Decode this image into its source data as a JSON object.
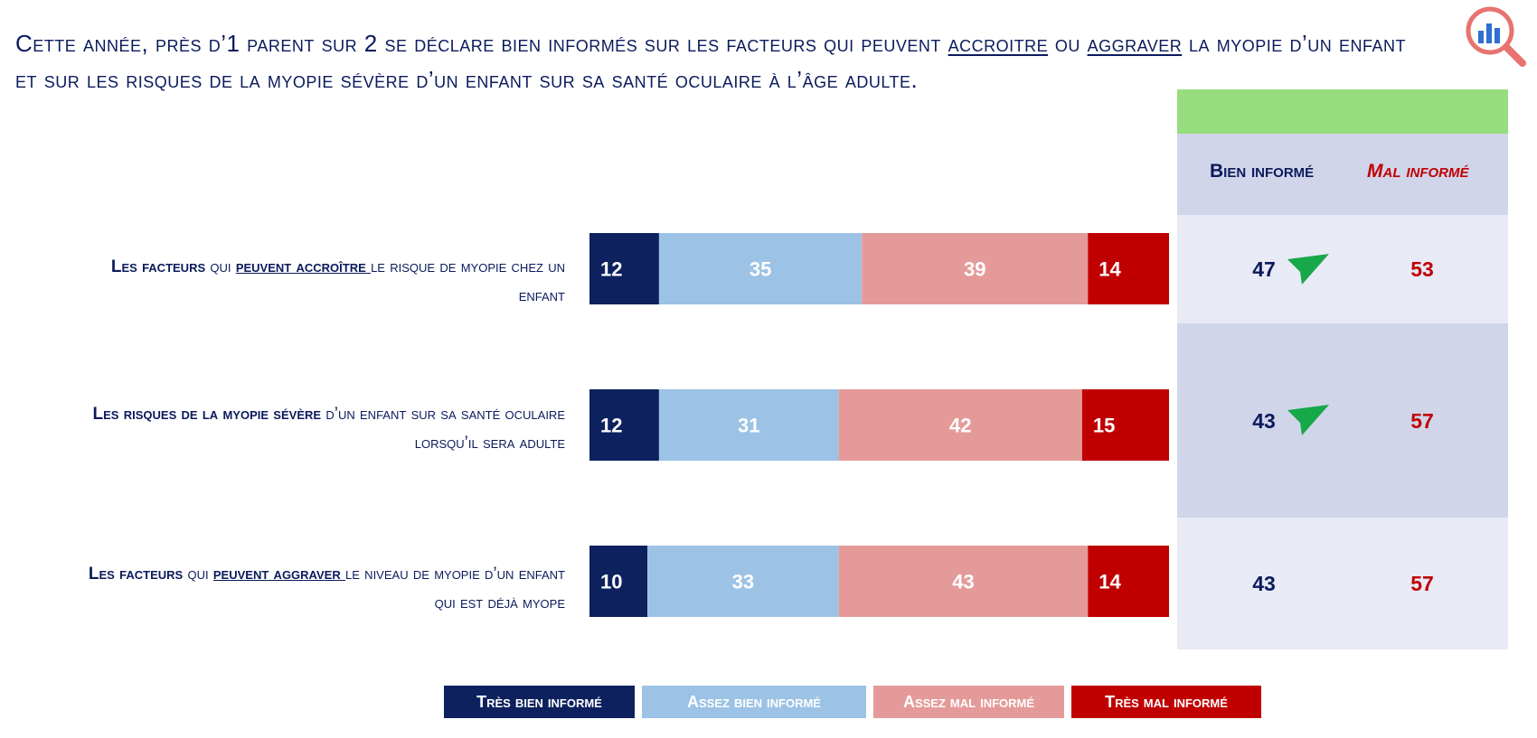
{
  "title": {
    "part1": "Cette année, près d’1 parent sur 2 se déclare bien informés sur les facteurs qui peuvent ",
    "word1": "accroitre",
    "part2": " ou ",
    "word2": "aggraver",
    "part3": " la myopie d’un enfant",
    "line2": "et sur les risques de la myopie sévère d’un enfant sur sa santé oculaire à l’âge adulte."
  },
  "logo": {
    "icon": "magnifier-chart-icon",
    "color": "#e8736e"
  },
  "rows": [
    {
      "bold": "Les facteurs",
      "pre": " qui ",
      "underline": "peuvent accroître ",
      "post": "le risque de myopie chez un",
      "line2": "enfant"
    },
    {
      "bold": "Les risques de la myopie sévère",
      "pre": " d’un enfant sur sa santé oculaire",
      "underline": "",
      "post": "",
      "line2": "lorsqu’il sera adulte"
    },
    {
      "bold": "Les facteurs",
      "pre": " qui ",
      "underline": "peuvent aggraver ",
      "post": "le niveau de myopie d’un enfant",
      "line2": "qui est déjà myope"
    }
  ],
  "summary": {
    "header_good": "Bien informé",
    "header_bad": "Mal informé",
    "good": [
      "47",
      "43",
      "43"
    ],
    "bad": [
      "53",
      "57",
      "57"
    ],
    "trend_icon": "green-up-arrow-icon",
    "trend_rows": [
      true,
      true,
      false
    ]
  },
  "colors": {
    "tres_bien": "#0d215e",
    "assez_bien": "#9cc2e5",
    "assez_mal": "#e59a9a",
    "tres_mal": "#c00000",
    "panel_top": "#96dd7e",
    "panel_header": "#d1d5ea",
    "good_text": "#0a1a5c",
    "bad_text": "#c00000"
  },
  "legend": [
    "Très bien informé",
    "Assez bien informé",
    "Assez mal informé",
    "Très mal informé"
  ],
  "chart_data": {
    "type": "bar",
    "orientation": "horizontal",
    "stacked": true,
    "categories": [
      "Les facteurs qui peuvent accroître le risque de myopie chez un enfant",
      "Les risques de la myopie sévère d’un enfant sur sa santé oculaire lorsqu’il sera adulte",
      "Les facteurs qui peuvent aggraver le niveau de myopie d’un enfant qui est déjà myope"
    ],
    "series": [
      {
        "name": "Très bien informé",
        "values": [
          12,
          12,
          10
        ]
      },
      {
        "name": "Assez bien informé",
        "values": [
          35,
          31,
          33
        ]
      },
      {
        "name": "Assez mal informé",
        "values": [
          39,
          42,
          43
        ]
      },
      {
        "name": "Très mal informé",
        "values": [
          14,
          15,
          14
        ]
      }
    ],
    "xlim": [
      0,
      100
    ],
    "legend_position": "bottom"
  }
}
